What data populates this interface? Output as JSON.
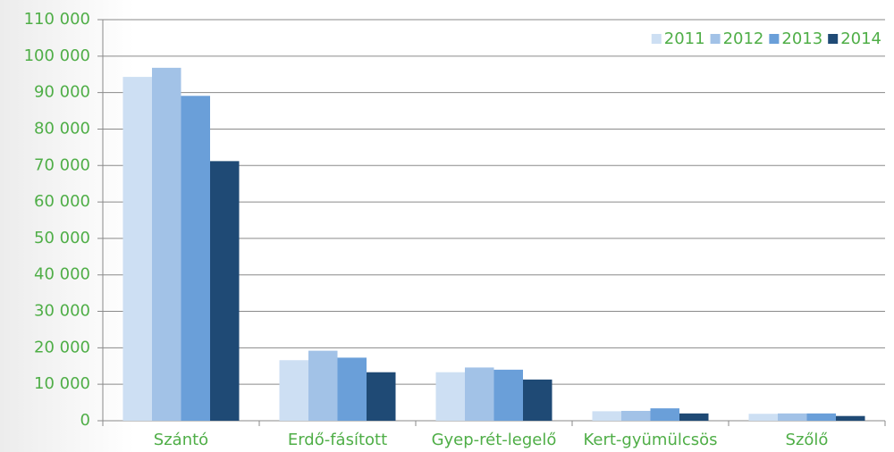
{
  "chart_data": {
    "type": "bar",
    "categories": [
      "Szántó",
      "Erdő-fásított",
      "Gyep-rét-legelő",
      "Kert-gyümülcsös",
      "Szőlő"
    ],
    "series": [
      {
        "name": "2011",
        "color": "#cddff3",
        "values": [
          94300,
          16600,
          13300,
          2600,
          1900
        ]
      },
      {
        "name": "2012",
        "color": "#a2c2e7",
        "values": [
          96800,
          19200,
          14600,
          2700,
          2000
        ]
      },
      {
        "name": "2013",
        "color": "#6a9fd9",
        "values": [
          89100,
          17300,
          14000,
          3400,
          2000
        ]
      },
      {
        "name": "2014",
        "color": "#1f4a75",
        "values": [
          71200,
          13300,
          11300,
          2000,
          1300
        ]
      }
    ],
    "ylim": [
      0,
      110000
    ],
    "yticks": [
      0,
      {
        "value": 10000,
        "label": "10 000"
      },
      {
        "value": 20000,
        "label": "20 000"
      },
      {
        "value": 30000,
        "label": "30 000"
      },
      {
        "value": 40000,
        "label": "40 000"
      },
      {
        "value": 50000,
        "label": "50 000"
      },
      {
        "value": 60000,
        "label": "60 000"
      },
      {
        "value": 70000,
        "label": "70 000"
      },
      {
        "value": 80000,
        "label": "80 000"
      },
      {
        "value": 90000,
        "label": "90 000"
      },
      {
        "value": 100000,
        "label": "100 000"
      },
      {
        "value": 110000,
        "label": "110 000"
      }
    ],
    "grid": true,
    "legend": "top-right"
  }
}
